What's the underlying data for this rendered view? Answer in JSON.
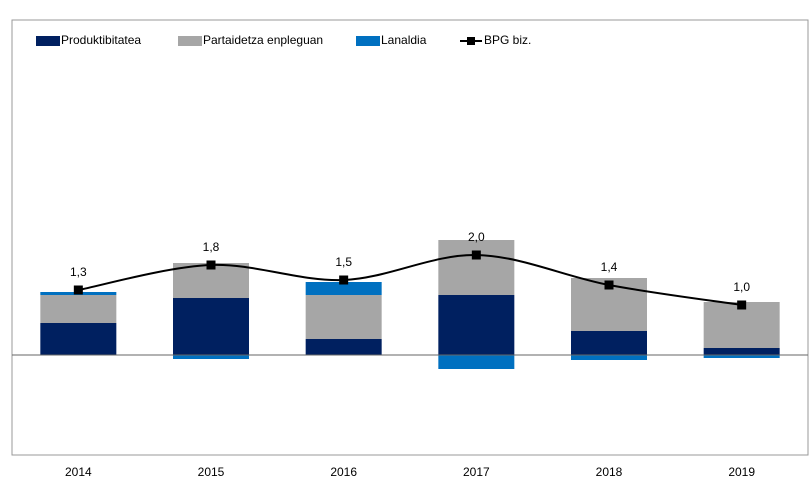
{
  "chart_data": {
    "type": "stacked_bar_line",
    "categories": [
      "2014",
      "2015",
      "2016",
      "2017",
      "2018",
      "2019"
    ],
    "series": [
      {
        "name": "Produktibitatea",
        "color": "#002060",
        "values": [
          0.64,
          1.14,
          0.32,
          1.2,
          0.48,
          0.14
        ]
      },
      {
        "name": "Partaidetza enpleguan",
        "color": "#a6a6a6",
        "values": [
          0.56,
          0.7,
          0.88,
          1.1,
          1.06,
          0.92
        ]
      },
      {
        "name": "Lanaldia",
        "color": "#0070c0",
        "values": [
          0.06,
          -0.08,
          0.26,
          -0.28,
          -0.1,
          -0.06
        ]
      },
      {
        "name": "BPG biz.",
        "color": "#000000",
        "type": "line",
        "values": [
          1.3,
          1.8,
          1.5,
          2.0,
          1.4,
          1.0
        ],
        "value_labels": [
          "1,3",
          "1,8",
          "1,5",
          "2,0",
          "1,4",
          "1,0"
        ]
      }
    ],
    "ylim": [
      -2.0,
      6.7
    ],
    "legend": "top-left"
  }
}
